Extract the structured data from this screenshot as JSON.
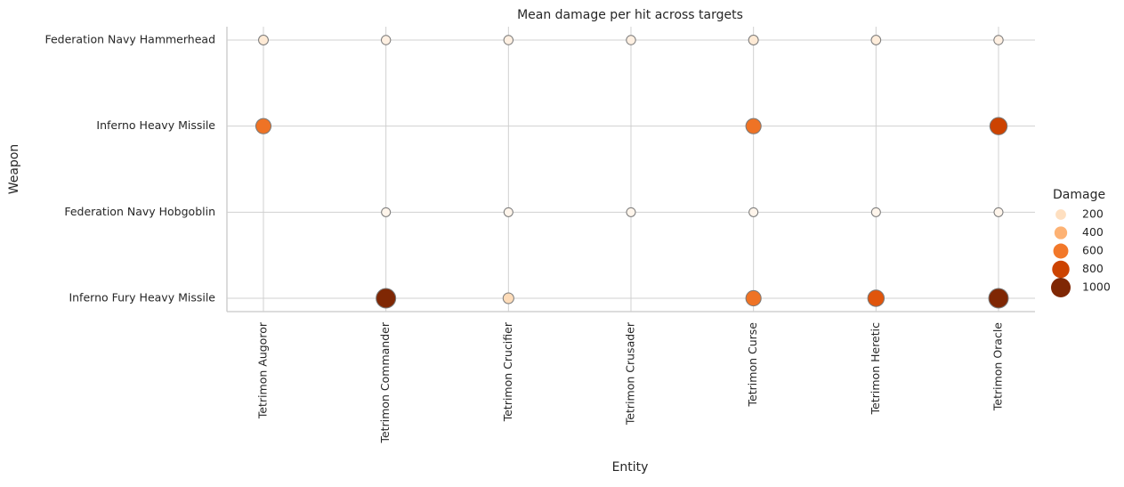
{
  "chart_data": {
    "type": "scatter",
    "title": "Mean damage per hit across targets",
    "x_label": "Entity",
    "y_label": "Weapon",
    "x_categories": [
      "Tetrimon Augoror",
      "Tetrimon Commander",
      "Tetrimon Crucifier",
      "Tetrimon Crusader",
      "Tetrimon Curse",
      "Tetrimon Heretic",
      "Tetrimon Oracle"
    ],
    "y_categories": [
      "Federation Navy Hammerhead",
      "Inferno Heavy Missile",
      "Federation Navy Hobgoblin",
      "Inferno Fury Heavy Missile"
    ],
    "x": [
      "Tetrimon Augoror",
      "Tetrimon Commander",
      "Tetrimon Crucifier",
      "Tetrimon Crusader",
      "Tetrimon Curse",
      "Tetrimon Heretic",
      "Tetrimon Oracle",
      "Tetrimon Augoror",
      "Tetrimon Curse",
      "Tetrimon Oracle",
      "Tetrimon Commander",
      "Tetrimon Crucifier",
      "Tetrimon Crusader",
      "Tetrimon Curse",
      "Tetrimon Heretic",
      "Tetrimon Oracle",
      "Tetrimon Commander",
      "Tetrimon Crucifier",
      "Tetrimon Curse",
      "Tetrimon Heretic",
      "Tetrimon Oracle"
    ],
    "y": [
      "Federation Navy Hammerhead",
      "Federation Navy Hammerhead",
      "Federation Navy Hammerhead",
      "Federation Navy Hammerhead",
      "Federation Navy Hammerhead",
      "Federation Navy Hammerhead",
      "Federation Navy Hammerhead",
      "Inferno Heavy Missile",
      "Inferno Heavy Missile",
      "Inferno Heavy Missile",
      "Federation Navy Hobgoblin",
      "Federation Navy Hobgoblin",
      "Federation Navy Hobgoblin",
      "Federation Navy Hobgoblin",
      "Federation Navy Hobgoblin",
      "Federation Navy Hobgoblin",
      "Inferno Fury Heavy Missile",
      "Inferno Fury Heavy Missile",
      "Inferno Fury Heavy Missile",
      "Inferno Fury Heavy Missile",
      "Inferno Fury Heavy Missile"
    ],
    "values": [
      130,
      90,
      90,
      90,
      130,
      110,
      90,
      620,
      620,
      800,
      60,
      60,
      60,
      60,
      60,
      60,
      1000,
      220,
      620,
      720,
      1000
    ],
    "legend": {
      "title": "Damage",
      "values": [
        200,
        400,
        600,
        800,
        1000
      ]
    },
    "colormap": [
      "#fff5eb",
      "#fdd0a2",
      "#fd8d3c",
      "#d94801",
      "#7f2704"
    ],
    "grid": true
  }
}
